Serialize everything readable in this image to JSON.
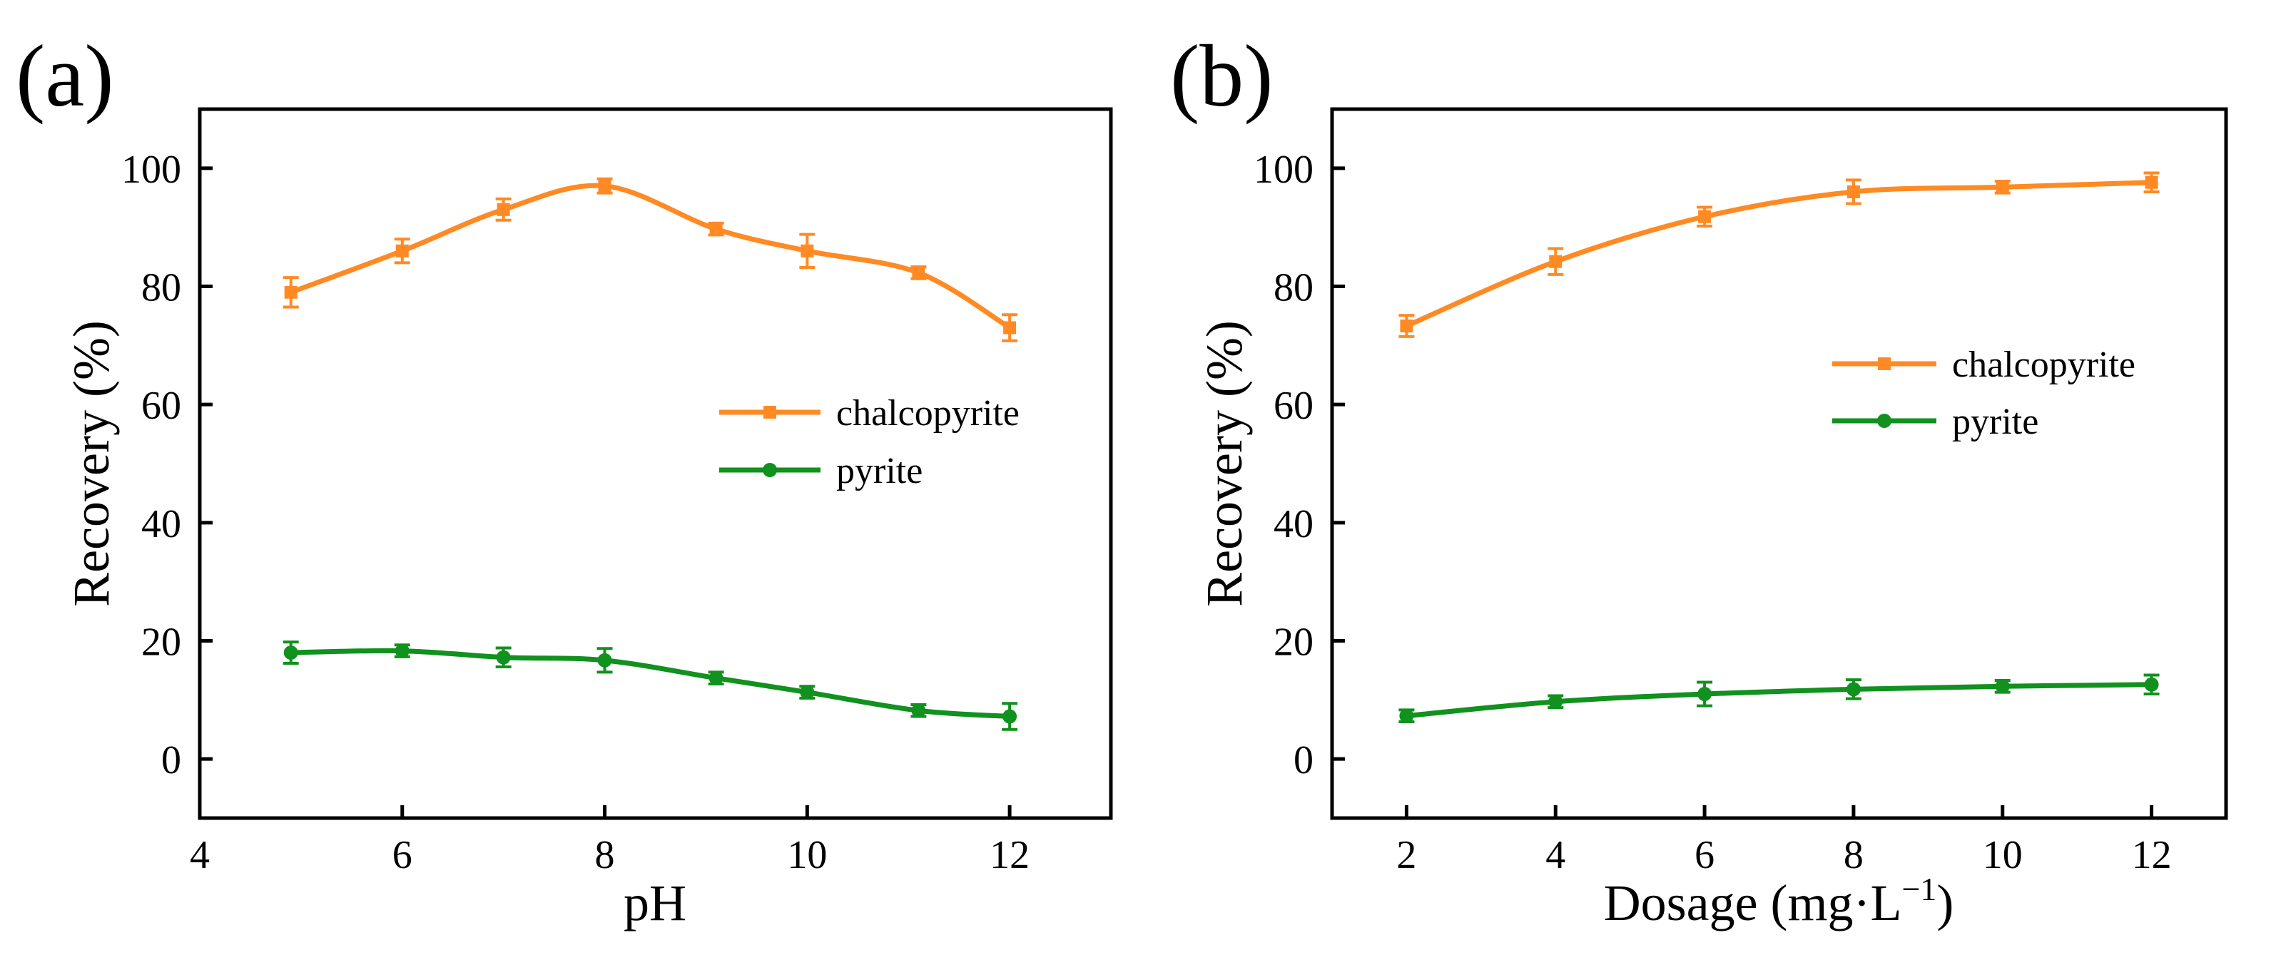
{
  "figure": {
    "colors": {
      "chalcopyrite": "#ff8a24",
      "pyrite": "#11911e",
      "axis": "#000000"
    }
  },
  "chart_data": [
    {
      "type": "line",
      "panel_label": "(a)",
      "xlabel": "pH",
      "ylabel": "Recovery (%)",
      "xlim": [
        4,
        13
      ],
      "ylim": [
        -10,
        110
      ],
      "xticks": [
        4,
        6,
        8,
        10,
        12
      ],
      "yticks": [
        0,
        20,
        40,
        60,
        80,
        100
      ],
      "grid": false,
      "legend_position": "right, middle",
      "series": [
        {
          "name": "chalcopyrite",
          "marker": "square",
          "color": "#ff8a24",
          "x": [
            4.9,
            6,
            7,
            8,
            9.1,
            10,
            11.1,
            12
          ],
          "y": [
            79,
            86,
            93,
            97,
            89.7,
            86,
            82.3,
            73
          ],
          "error": [
            2.5,
            2,
            1.8,
            1.2,
            1,
            2.8,
            1,
            2.2
          ]
        },
        {
          "name": "pyrite",
          "marker": "circle",
          "color": "#11911e",
          "x": [
            4.9,
            6,
            7,
            8,
            9.1,
            10,
            11.1,
            12
          ],
          "y": [
            18,
            18.3,
            17.2,
            16.7,
            13.7,
            11.3,
            8.2,
            7.2
          ],
          "error": [
            1.8,
            1,
            1.6,
            2,
            1,
            1,
            1,
            2.2
          ]
        }
      ]
    },
    {
      "type": "line",
      "panel_label": "(b)",
      "xlabel": "Dosage (mg·L",
      "xlabel_sup": "−1",
      "xlabel_close": ")",
      "ylabel": "Recovery (%)",
      "xlim": [
        1,
        13
      ],
      "ylim": [
        -10,
        110
      ],
      "xticks": [
        2,
        4,
        6,
        8,
        10,
        12
      ],
      "yticks": [
        0,
        20,
        40,
        60,
        80,
        100
      ],
      "grid": false,
      "legend_position": "upper right",
      "series": [
        {
          "name": "chalcopyrite",
          "marker": "square",
          "color": "#ff8a24",
          "x": [
            2,
            4,
            6,
            8,
            10,
            12
          ],
          "y": [
            73.3,
            84.2,
            91.8,
            96,
            96.8,
            97.6
          ],
          "error": [
            1.8,
            2.2,
            1.6,
            2,
            1,
            1.6
          ]
        },
        {
          "name": "pyrite",
          "marker": "circle",
          "color": "#11911e",
          "x": [
            2,
            4,
            6,
            8,
            10,
            12
          ],
          "y": [
            7.3,
            9.7,
            11,
            11.8,
            12.3,
            12.6
          ],
          "error": [
            1,
            1,
            2,
            1.6,
            1,
            1.6
          ]
        }
      ]
    }
  ]
}
